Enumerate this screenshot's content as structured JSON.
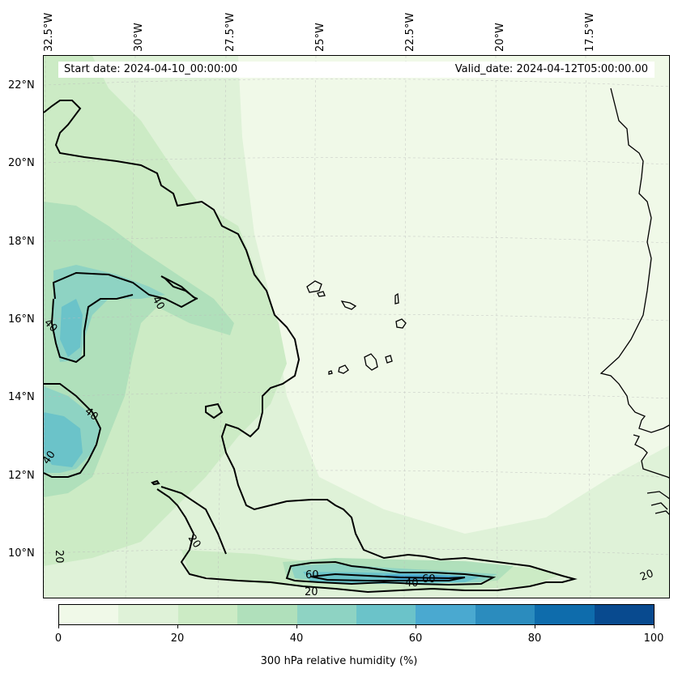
{
  "info": {
    "start_date": "Start date: 2024-04-10_00:00:00",
    "valid_date": "Valid_date: 2024-04-12T05:00:00.00"
  },
  "longitude_labels": [
    "32.5°W",
    "30°W",
    "27.5°W",
    "25°W",
    "22.5°W",
    "20°W",
    "17.5°W"
  ],
  "latitude_labels": [
    "22°N",
    "20°N",
    "18°N",
    "16°N",
    "14°N",
    "12°N",
    "10°N"
  ],
  "contour_labels": [
    "40",
    "40",
    "40",
    "40",
    "20",
    "20",
    "60",
    "60",
    "40",
    "20",
    "20"
  ],
  "colorbar": {
    "label": "300 hPa relative humidity (%)",
    "ticks": [
      "0",
      "20",
      "40",
      "60",
      "80",
      "100"
    ],
    "colors": [
      "#f0f9e8",
      "#dff2d8",
      "#ccebc5",
      "#b0e0bb",
      "#8ed3c3",
      "#6bc3c9",
      "#4aa9d0",
      "#2b8cbe",
      "#0e6cac",
      "#084a8f"
    ]
  },
  "fill_levels": {
    "background": "#f0f9e8",
    "level_10": "#dff2d8",
    "level_20": "#ccebc5",
    "level_30": "#b0e0bb",
    "level_40": "#8ed3c3",
    "level_50": "#6bc3c9",
    "level_60": "#4aa9d0"
  }
}
